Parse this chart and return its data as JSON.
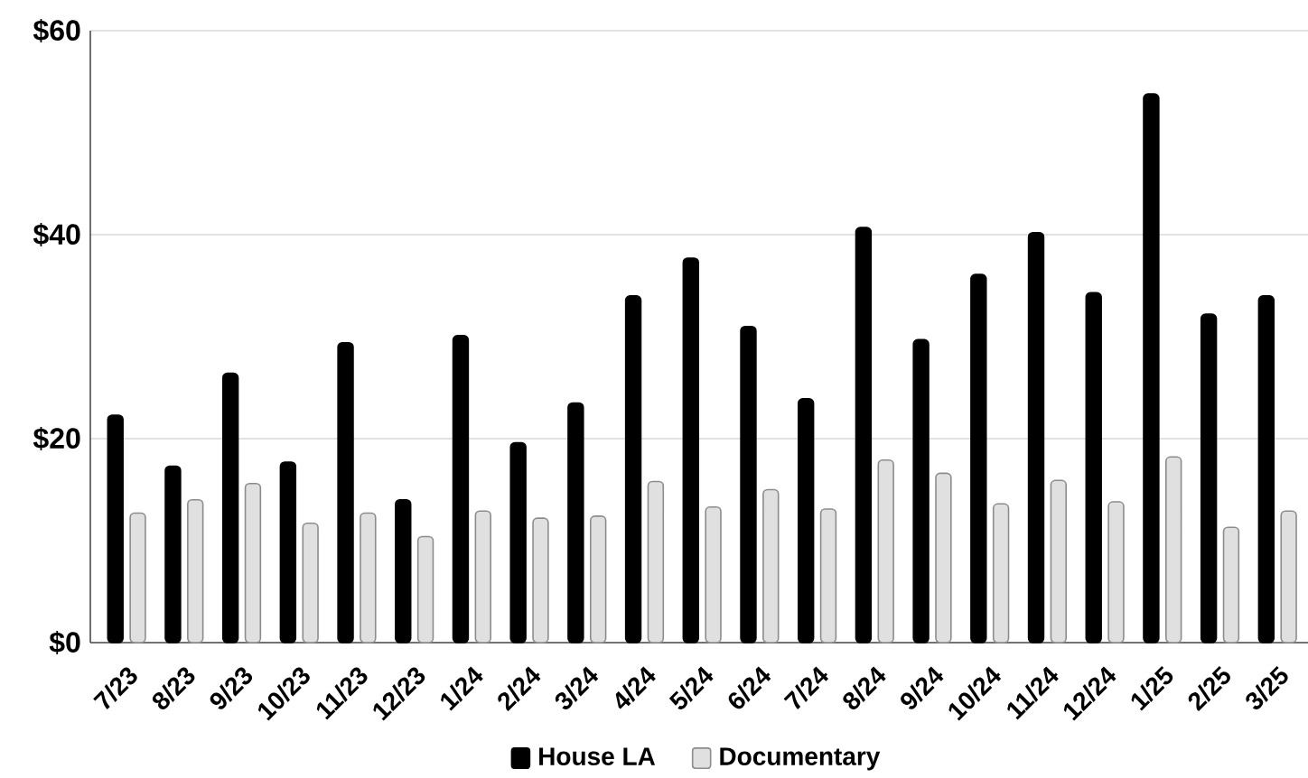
{
  "chart_data": {
    "type": "bar",
    "categories": [
      "7/23",
      "8/23",
      "9/23",
      "10/23",
      "11/23",
      "12/23",
      "1/24",
      "2/24",
      "3/24",
      "4/24",
      "5/24",
      "6/24",
      "7/24",
      "8/24",
      "9/24",
      "10/24",
      "11/24",
      "12/24",
      "1/25",
      "2/25",
      "3/25"
    ],
    "series": [
      {
        "name": "House LA",
        "color": "#000000",
        "values": [
          22.3,
          17.3,
          26.4,
          17.7,
          29.4,
          14.0,
          30.1,
          19.6,
          23.5,
          34.0,
          37.7,
          31.0,
          23.9,
          40.7,
          29.7,
          36.1,
          40.2,
          34.3,
          53.8,
          32.2,
          34.0
        ]
      },
      {
        "name": "Documentary",
        "color": "#e0e0e0",
        "values": [
          12.7,
          14.0,
          15.6,
          11.7,
          12.7,
          10.4,
          12.9,
          12.2,
          12.4,
          15.8,
          13.3,
          15.0,
          13.1,
          17.9,
          16.6,
          13.6,
          15.9,
          13.8,
          18.2,
          11.3,
          12.9
        ]
      }
    ],
    "ylim": [
      0,
      60
    ],
    "yticks": [
      {
        "value": 0,
        "label": "$0"
      },
      {
        "value": 20,
        "label": "$20"
      },
      {
        "value": 40,
        "label": "$40"
      },
      {
        "value": 60,
        "label": "$60"
      }
    ],
    "grid": "y",
    "legend": "bottom"
  }
}
